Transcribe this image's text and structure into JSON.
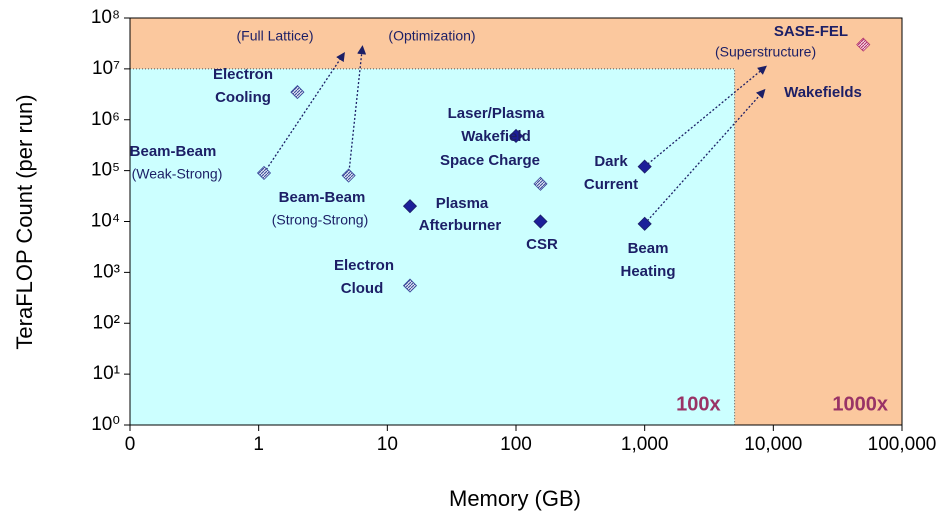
{
  "chart_data": {
    "type": "scatter",
    "x_label": "Memory (GB)",
    "y_label": "TeraFLOP Count (per run)",
    "log_x": true,
    "log_y": true,
    "xlim": [
      0.1,
      100000
    ],
    "xticks": [
      {
        "value": 0.1,
        "label": "0"
      },
      1,
      10,
      100,
      {
        "value": 1000,
        "label": "1,000"
      },
      {
        "value": 10000,
        "label": "10,000"
      },
      {
        "value": 100000,
        "label": "100,000"
      }
    ],
    "ylim": [
      1,
      100000000
    ],
    "yticks": [
      {
        "value": 1,
        "label": "10⁰"
      },
      {
        "value": 10,
        "label": "10¹"
      },
      {
        "value": 100,
        "label": "10²"
      },
      {
        "value": 1000,
        "label": "10³"
      },
      {
        "value": 10000,
        "label": "10⁴"
      },
      {
        "value": 100000,
        "label": "10⁵"
      },
      {
        "value": 1000000,
        "label": "10⁶"
      },
      {
        "value": 10000000,
        "label": "10⁷"
      },
      {
        "value": 100000000,
        "label": "10⁸"
      }
    ],
    "regions": [
      {
        "label": "1000x",
        "color": "#fbc89e"
      },
      {
        "label": "100x",
        "xmax": 5000,
        "ymax": 10000000,
        "color": "#ccffff"
      }
    ],
    "points": [
      {
        "label": [
          "Electron",
          "Cooling"
        ],
        "x": 2,
        "y": 3500000,
        "marker": "hatched"
      },
      {
        "label": [
          "Beam-Beam"
        ],
        "note": "(Weak-Strong)",
        "x": 1.1,
        "y": 90000,
        "marker": "hatched",
        "projection": {
          "label": "(Full Lattice)",
          "x": 4.6,
          "y": 20000000
        }
      },
      {
        "label": [
          "Beam-Beam"
        ],
        "note": "(Strong-Strong)",
        "x": 5,
        "y": 80000,
        "marker": "hatched",
        "projection": {
          "label": "(Optimization)",
          "x": 6.4,
          "y": 27000000
        }
      },
      {
        "label": [
          "Electron",
          "Cloud"
        ],
        "x": 15,
        "y": 550,
        "marker": "hatched"
      },
      {
        "label": [
          "Plasma",
          "Afterburner"
        ],
        "x": 15,
        "y": 20000,
        "marker": "solid"
      },
      {
        "label": [
          "Laser/Plasma",
          "Wakefield"
        ],
        "x": 100,
        "y": 480000,
        "marker": "solid"
      },
      {
        "label": [
          "Space Charge"
        ],
        "x": 155,
        "y": 55000,
        "marker": "hatched"
      },
      {
        "label": [
          "CSR"
        ],
        "x": 155,
        "y": 10000,
        "marker": "solid"
      },
      {
        "label": [
          "Dark",
          "Current"
        ],
        "x": 1000,
        "y": 120000,
        "marker": "solid",
        "projection": {
          "label": "(Superstructure)",
          "x": 8700,
          "y": 11000000
        }
      },
      {
        "label": [
          "Beam",
          "Heating"
        ],
        "x": 1000,
        "y": 9000,
        "marker": "solid",
        "projection": {
          "label": "Wakefields",
          "x": 8500,
          "y": 3800000
        }
      },
      {
        "label": [
          "SASE-FEL"
        ],
        "x": 50000,
        "y": 30000000,
        "marker": "pink"
      }
    ]
  }
}
